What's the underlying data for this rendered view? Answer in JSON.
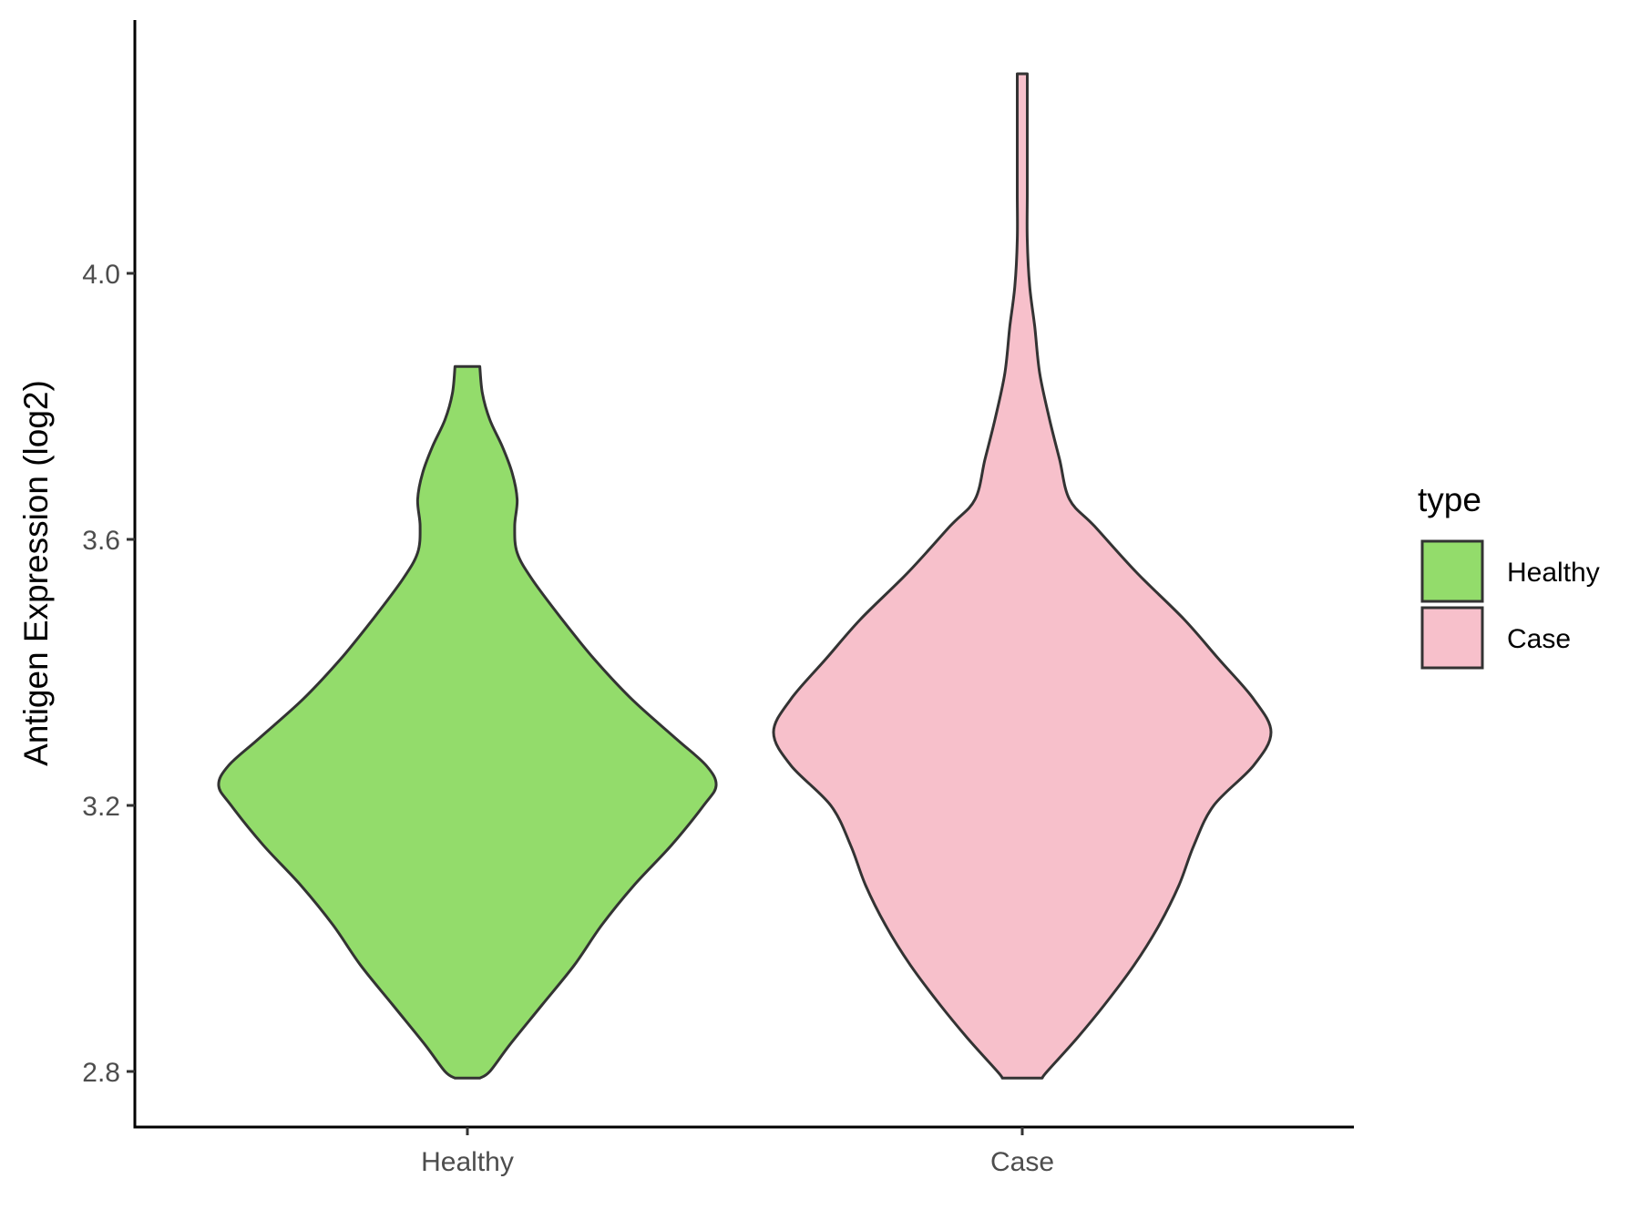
{
  "chart_data": {
    "type": "violin",
    "ylabel": "Antigen Expression (log2)",
    "xlabel": "",
    "y_ticks": [
      2.8,
      3.2,
      3.6,
      4.0
    ],
    "y_tick_labels": [
      "2.8",
      "3.2",
      "3.6",
      "4.0"
    ],
    "ylim": [
      2.715,
      4.38
    ],
    "categories": [
      "Healthy",
      "Case"
    ],
    "legend": {
      "title": "type",
      "position": "right",
      "items": [
        {
          "label": "Healthy",
          "color": "#93dc6b"
        },
        {
          "label": "Case",
          "color": "#f7c0cb"
        }
      ]
    },
    "series": [
      {
        "name": "Healthy",
        "color": "#93dc6b",
        "min": 2.79,
        "max": 3.86,
        "density": [
          [
            2.79,
            0.05
          ],
          [
            2.8,
            0.09
          ],
          [
            2.84,
            0.17
          ],
          [
            2.9,
            0.3
          ],
          [
            2.96,
            0.43
          ],
          [
            3.02,
            0.54
          ],
          [
            3.08,
            0.67
          ],
          [
            3.14,
            0.82
          ],
          [
            3.2,
            0.95
          ],
          [
            3.23,
            1.0
          ],
          [
            3.26,
            0.96
          ],
          [
            3.3,
            0.84
          ],
          [
            3.36,
            0.66
          ],
          [
            3.42,
            0.51
          ],
          [
            3.48,
            0.38
          ],
          [
            3.54,
            0.26
          ],
          [
            3.58,
            0.2
          ],
          [
            3.62,
            0.19
          ],
          [
            3.66,
            0.2
          ],
          [
            3.7,
            0.18
          ],
          [
            3.74,
            0.14
          ],
          [
            3.78,
            0.09
          ],
          [
            3.82,
            0.06
          ],
          [
            3.86,
            0.05
          ]
        ]
      },
      {
        "name": "Case",
        "color": "#f7c0cb",
        "min": 2.79,
        "max": 4.3,
        "density": [
          [
            2.79,
            0.08
          ],
          [
            2.8,
            0.1
          ],
          [
            2.85,
            0.22
          ],
          [
            2.9,
            0.33
          ],
          [
            2.96,
            0.45
          ],
          [
            3.02,
            0.55
          ],
          [
            3.08,
            0.63
          ],
          [
            3.14,
            0.69
          ],
          [
            3.2,
            0.77
          ],
          [
            3.26,
            0.93
          ],
          [
            3.31,
            1.0
          ],
          [
            3.36,
            0.93
          ],
          [
            3.42,
            0.79
          ],
          [
            3.48,
            0.65
          ],
          [
            3.55,
            0.46
          ],
          [
            3.62,
            0.29
          ],
          [
            3.66,
            0.19
          ],
          [
            3.72,
            0.15
          ],
          [
            3.78,
            0.11
          ],
          [
            3.85,
            0.07
          ],
          [
            3.92,
            0.05
          ],
          [
            3.98,
            0.03
          ],
          [
            4.05,
            0.02
          ],
          [
            4.12,
            0.02
          ],
          [
            4.2,
            0.02
          ],
          [
            4.3,
            0.02
          ]
        ]
      }
    ]
  }
}
